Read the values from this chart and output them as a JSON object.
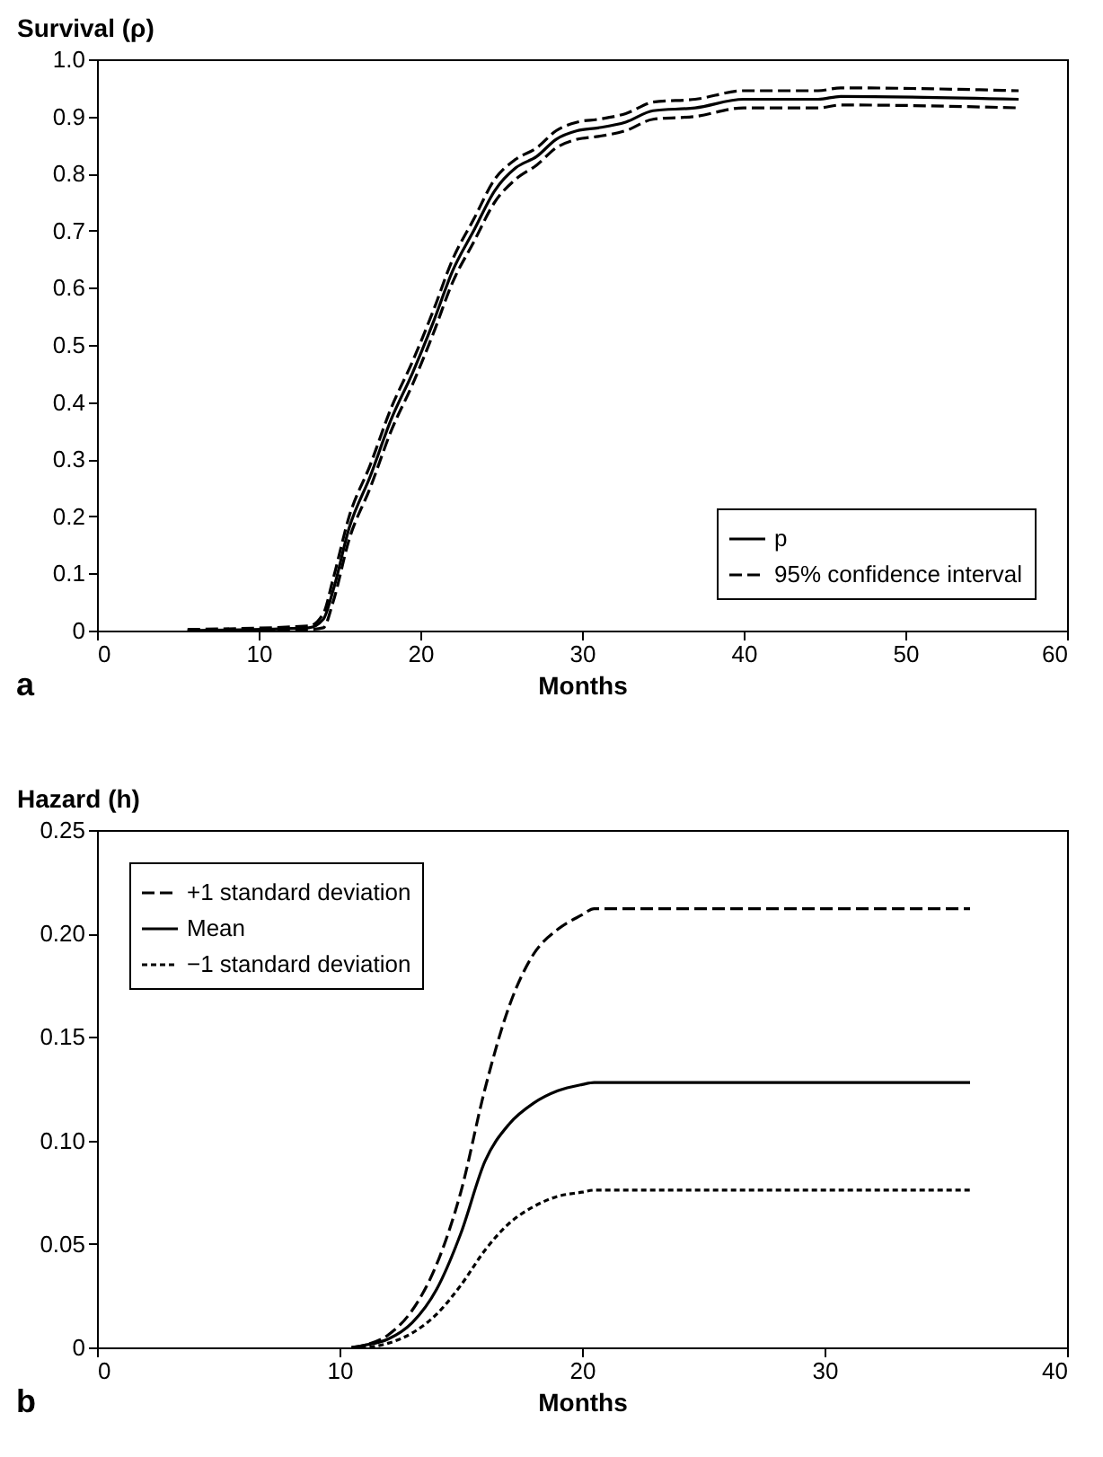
{
  "chart_data": [
    {
      "type": "line",
      "xlabel": "Months",
      "ylabel": "Survival (ρ)",
      "annotations": [
        "a"
      ],
      "x": [
        5.6,
        13.1,
        14.0,
        14.6,
        15.6,
        16.9,
        18.2,
        19.5,
        20.8,
        22.0,
        23.3,
        24.6,
        25.9,
        27.2,
        28.4,
        29.7,
        31.0,
        32.7,
        34.4,
        37.0,
        40.0,
        44.6,
        46.0,
        57.0
      ],
      "series": [
        {
          "name": "p",
          "color": "#000000",
          "line_style": "solid",
          "values": [
            0,
            0.005,
            0.02,
            0.07,
            0.18,
            0.27,
            0.37,
            0.45,
            0.54,
            0.63,
            0.7,
            0.77,
            0.81,
            0.83,
            0.86,
            0.875,
            0.88,
            0.89,
            0.91,
            0.915,
            0.93,
            0.93,
            0.935,
            0.93
          ]
        },
        {
          "name": "95% confidence interval",
          "color": "#000000",
          "line_style": "dashed",
          "values": [
            0.002,
            0.008,
            0.03,
            0.09,
            0.2,
            0.29,
            0.39,
            0.47,
            0.56,
            0.65,
            0.72,
            0.79,
            0.825,
            0.845,
            0.875,
            0.89,
            0.895,
            0.905,
            0.925,
            0.93,
            0.945,
            0.945,
            0.95,
            0.945
          ]
        },
        {
          "color": "#000000",
          "line_style": "dashed",
          "values": [
            0,
            0.002,
            0.005,
            0.05,
            0.16,
            0.25,
            0.35,
            0.43,
            0.52,
            0.61,
            0.68,
            0.75,
            0.79,
            0.815,
            0.845,
            0.86,
            0.865,
            0.875,
            0.895,
            0.9,
            0.915,
            0.915,
            0.92,
            0.915
          ]
        }
      ],
      "xlim": [
        0,
        60
      ],
      "xticks": [
        0,
        10,
        20,
        30,
        40,
        50,
        60
      ],
      "ylim": [
        0,
        1
      ],
      "yticks": [
        0,
        0.1,
        0.2,
        0.3,
        0.4,
        0.5,
        0.6,
        0.7,
        0.8,
        0.9,
        {
          "value": 1,
          "label": "1.0"
        }
      ],
      "grid": false,
      "legend": "bottom right"
    },
    {
      "type": "line",
      "xlabel": "Months",
      "ylabel": "Hazard (h)",
      "annotations": [
        "b"
      ],
      "x": [
        10.5,
        11,
        12,
        13,
        14,
        15,
        16,
        17,
        18,
        19,
        20,
        20.5,
        36
      ],
      "series": [
        {
          "name": "+1 standard deviation",
          "color": "#000000",
          "line_style": "dashed",
          "values": [
            0,
            0.001,
            0.006,
            0.018,
            0.04,
            0.075,
            0.125,
            0.165,
            0.19,
            0.202,
            0.209,
            0.212,
            0.212
          ]
        },
        {
          "name": "Mean",
          "color": "#000000",
          "line_style": "solid",
          "values": [
            0,
            0.001,
            0.004,
            0.012,
            0.028,
            0.055,
            0.09,
            0.108,
            0.118,
            0.124,
            0.127,
            0.128,
            0.128
          ]
        },
        {
          "name": "−1 standard deviation",
          "color": "#000000",
          "line_style": "dotted",
          "values": [
            0,
            0,
            0.002,
            0.007,
            0.016,
            0.03,
            0.047,
            0.06,
            0.068,
            0.073,
            0.075,
            0.076,
            0.076
          ]
        }
      ],
      "xlim": [
        0,
        40
      ],
      "xticks": [
        0,
        10,
        20,
        30,
        40
      ],
      "ylim": [
        0,
        0.25
      ],
      "yticks": [
        0,
        0.05,
        {
          "value": 0.1,
          "label": "0.10"
        },
        0.15,
        {
          "value": 0.2,
          "label": "0.20"
        },
        0.25
      ],
      "grid": false,
      "legend": "top left"
    }
  ]
}
